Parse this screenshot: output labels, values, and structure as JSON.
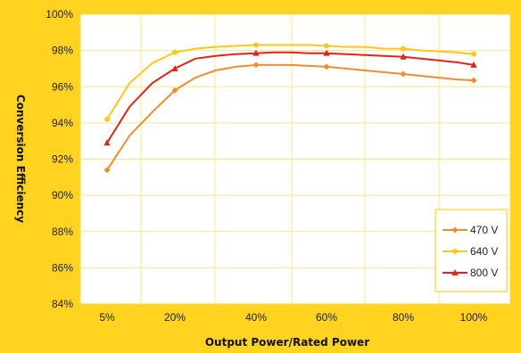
{
  "chart_data": {
    "type": "line",
    "title": "",
    "xlabel": "Output Power/Rated Power",
    "ylabel": "Conversion Efficiency",
    "x_ticks": [
      "5%",
      "20%",
      "40%",
      "60%",
      "80%",
      "100%"
    ],
    "y_ticks": [
      "84%",
      "86%",
      "88%",
      "90%",
      "92%",
      "94%",
      "96%",
      "98%",
      "100%"
    ],
    "xlim": [
      0,
      100
    ],
    "ylim": [
      84,
      100
    ],
    "grid": true,
    "legend_position": "bottom-right",
    "series": [
      {
        "name": "470 V",
        "color": "#F08C30",
        "marker": "diamond",
        "x": [
          5,
          10,
          15,
          20,
          25,
          30,
          35,
          40,
          45,
          50,
          55,
          60,
          65,
          70,
          75,
          80,
          85,
          90,
          95,
          100
        ],
        "y": [
          91.4,
          93.3,
          94.6,
          95.8,
          96.5,
          96.9,
          97.1,
          97.2,
          97.2,
          97.2,
          97.15,
          97.1,
          97.0,
          96.9,
          96.8,
          96.7,
          96.6,
          96.5,
          96.4,
          96.35
        ]
      },
      {
        "name": "640 V",
        "color": "#FFC61E",
        "marker": "circle",
        "x": [
          5,
          10,
          15,
          20,
          25,
          30,
          35,
          40,
          45,
          50,
          55,
          60,
          65,
          70,
          75,
          80,
          85,
          90,
          95,
          100
        ],
        "y": [
          94.2,
          96.2,
          97.3,
          97.9,
          98.1,
          98.2,
          98.25,
          98.3,
          98.3,
          98.3,
          98.3,
          98.25,
          98.2,
          98.2,
          98.1,
          98.1,
          98.0,
          97.95,
          97.9,
          97.8
        ]
      },
      {
        "name": "800 V",
        "color": "#E2231A",
        "marker": "triangle",
        "x": [
          5,
          10,
          15,
          20,
          25,
          30,
          35,
          40,
          45,
          50,
          55,
          60,
          65,
          70,
          75,
          80,
          85,
          90,
          95,
          100
        ],
        "y": [
          92.9,
          94.9,
          96.2,
          97.0,
          97.55,
          97.7,
          97.8,
          97.85,
          97.9,
          97.9,
          97.85,
          97.85,
          97.8,
          97.75,
          97.7,
          97.65,
          97.55,
          97.45,
          97.35,
          97.2
        ]
      }
    ]
  }
}
